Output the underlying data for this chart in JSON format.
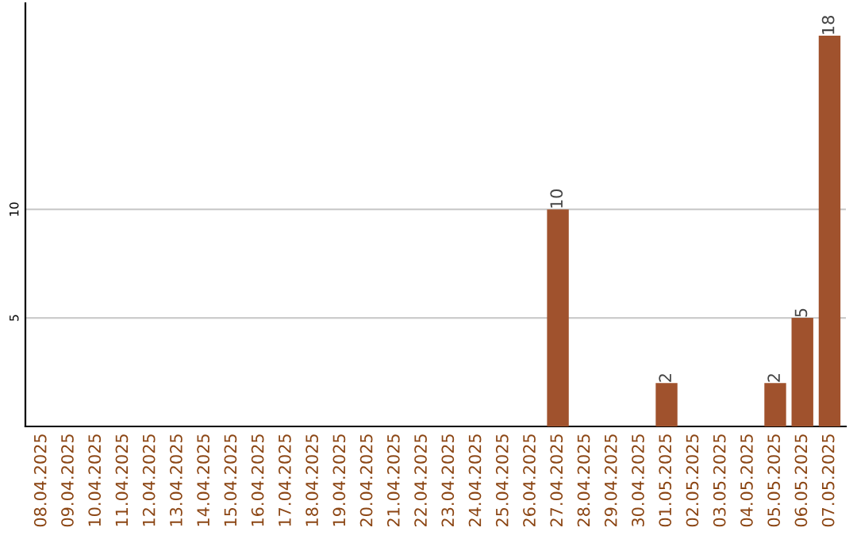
{
  "chart_data": {
    "type": "bar",
    "categories": [
      "08.04.2025",
      "09.04.2025",
      "10.04.2025",
      "11.04.2025",
      "12.04.2025",
      "13.04.2025",
      "14.04.2025",
      "15.04.2025",
      "16.04.2025",
      "17.04.2025",
      "18.04.2025",
      "19.04.2025",
      "20.04.2025",
      "21.04.2025",
      "22.04.2025",
      "23.04.2025",
      "24.04.2025",
      "25.04.2025",
      "26.04.2025",
      "27.04.2025",
      "28.04.2025",
      "29.04.2025",
      "30.04.2025",
      "01.05.2025",
      "02.05.2025",
      "03.05.2025",
      "04.05.2025",
      "05.05.2025",
      "06.05.2025",
      "07.05.2025"
    ],
    "values": [
      0,
      0,
      0,
      0,
      0,
      0,
      0,
      0,
      0,
      0,
      0,
      0,
      0,
      0,
      0,
      0,
      0,
      0,
      0,
      10,
      0,
      0,
      0,
      2,
      0,
      0,
      0,
      2,
      5,
      18
    ],
    "value_labels": [
      null,
      null,
      null,
      null,
      null,
      null,
      null,
      null,
      null,
      null,
      null,
      null,
      null,
      null,
      null,
      null,
      null,
      null,
      null,
      "10",
      null,
      null,
      null,
      "2",
      null,
      null,
      null,
      "2",
      "5",
      "18"
    ],
    "color": "#a0522d",
    "ylim": [
      0,
      19.5
    ],
    "yticks": [
      5,
      10
    ],
    "grid": "y",
    "legend": false
  }
}
